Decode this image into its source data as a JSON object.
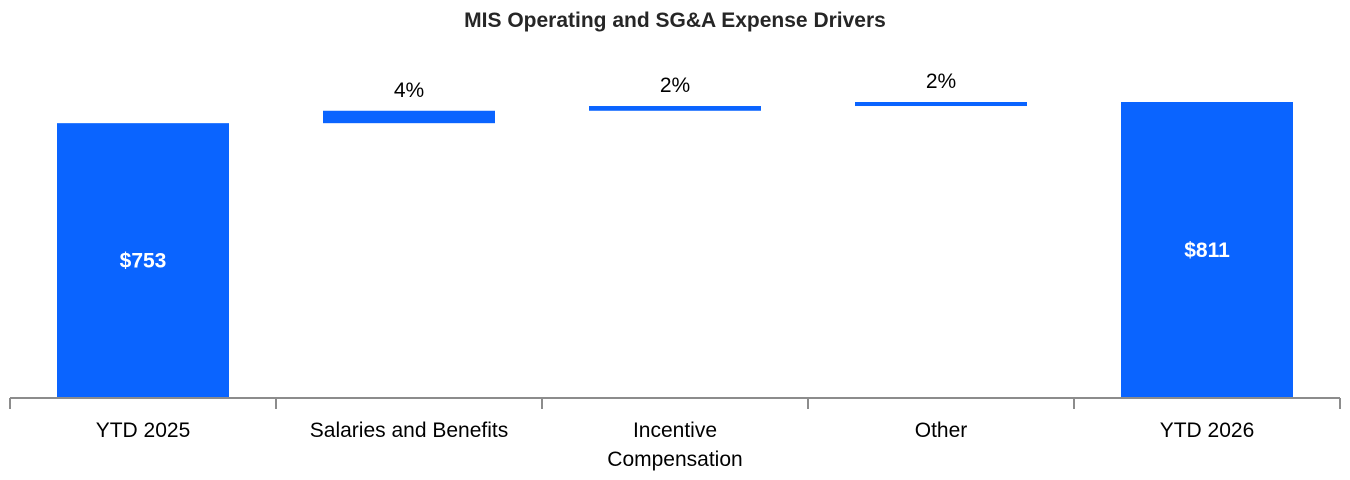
{
  "chart_data": {
    "type": "bar",
    "subtype": "waterfall",
    "title": "MIS Operating and SG&A Expense Drivers",
    "xlabel": "",
    "ylabel": "",
    "categories": [
      "YTD 2025",
      "Salaries and Benefits",
      "Incentive Compensation",
      "Other",
      "YTD 2026"
    ],
    "category_lines": [
      [
        "YTD 2025"
      ],
      [
        "Salaries and Benefits"
      ],
      [
        "Incentive",
        "Compensation"
      ],
      [
        "Other"
      ],
      [
        "YTD 2026"
      ]
    ],
    "bars": [
      {
        "kind": "total",
        "value": 753,
        "label": "$753"
      },
      {
        "kind": "delta",
        "start": 753,
        "end": 787,
        "label": "4%"
      },
      {
        "kind": "delta",
        "start": 787,
        "end": 800,
        "label": "2%"
      },
      {
        "kind": "delta",
        "start": 800,
        "end": 811,
        "label": "2%"
      },
      {
        "kind": "total",
        "value": 811,
        "label": "$811"
      }
    ],
    "ylim": [
      0,
      811
    ],
    "grid": false,
    "legend": "none",
    "colors": {
      "bar": "#0A64FF",
      "axis": "#8C8C8C",
      "title": "#262626"
    }
  }
}
